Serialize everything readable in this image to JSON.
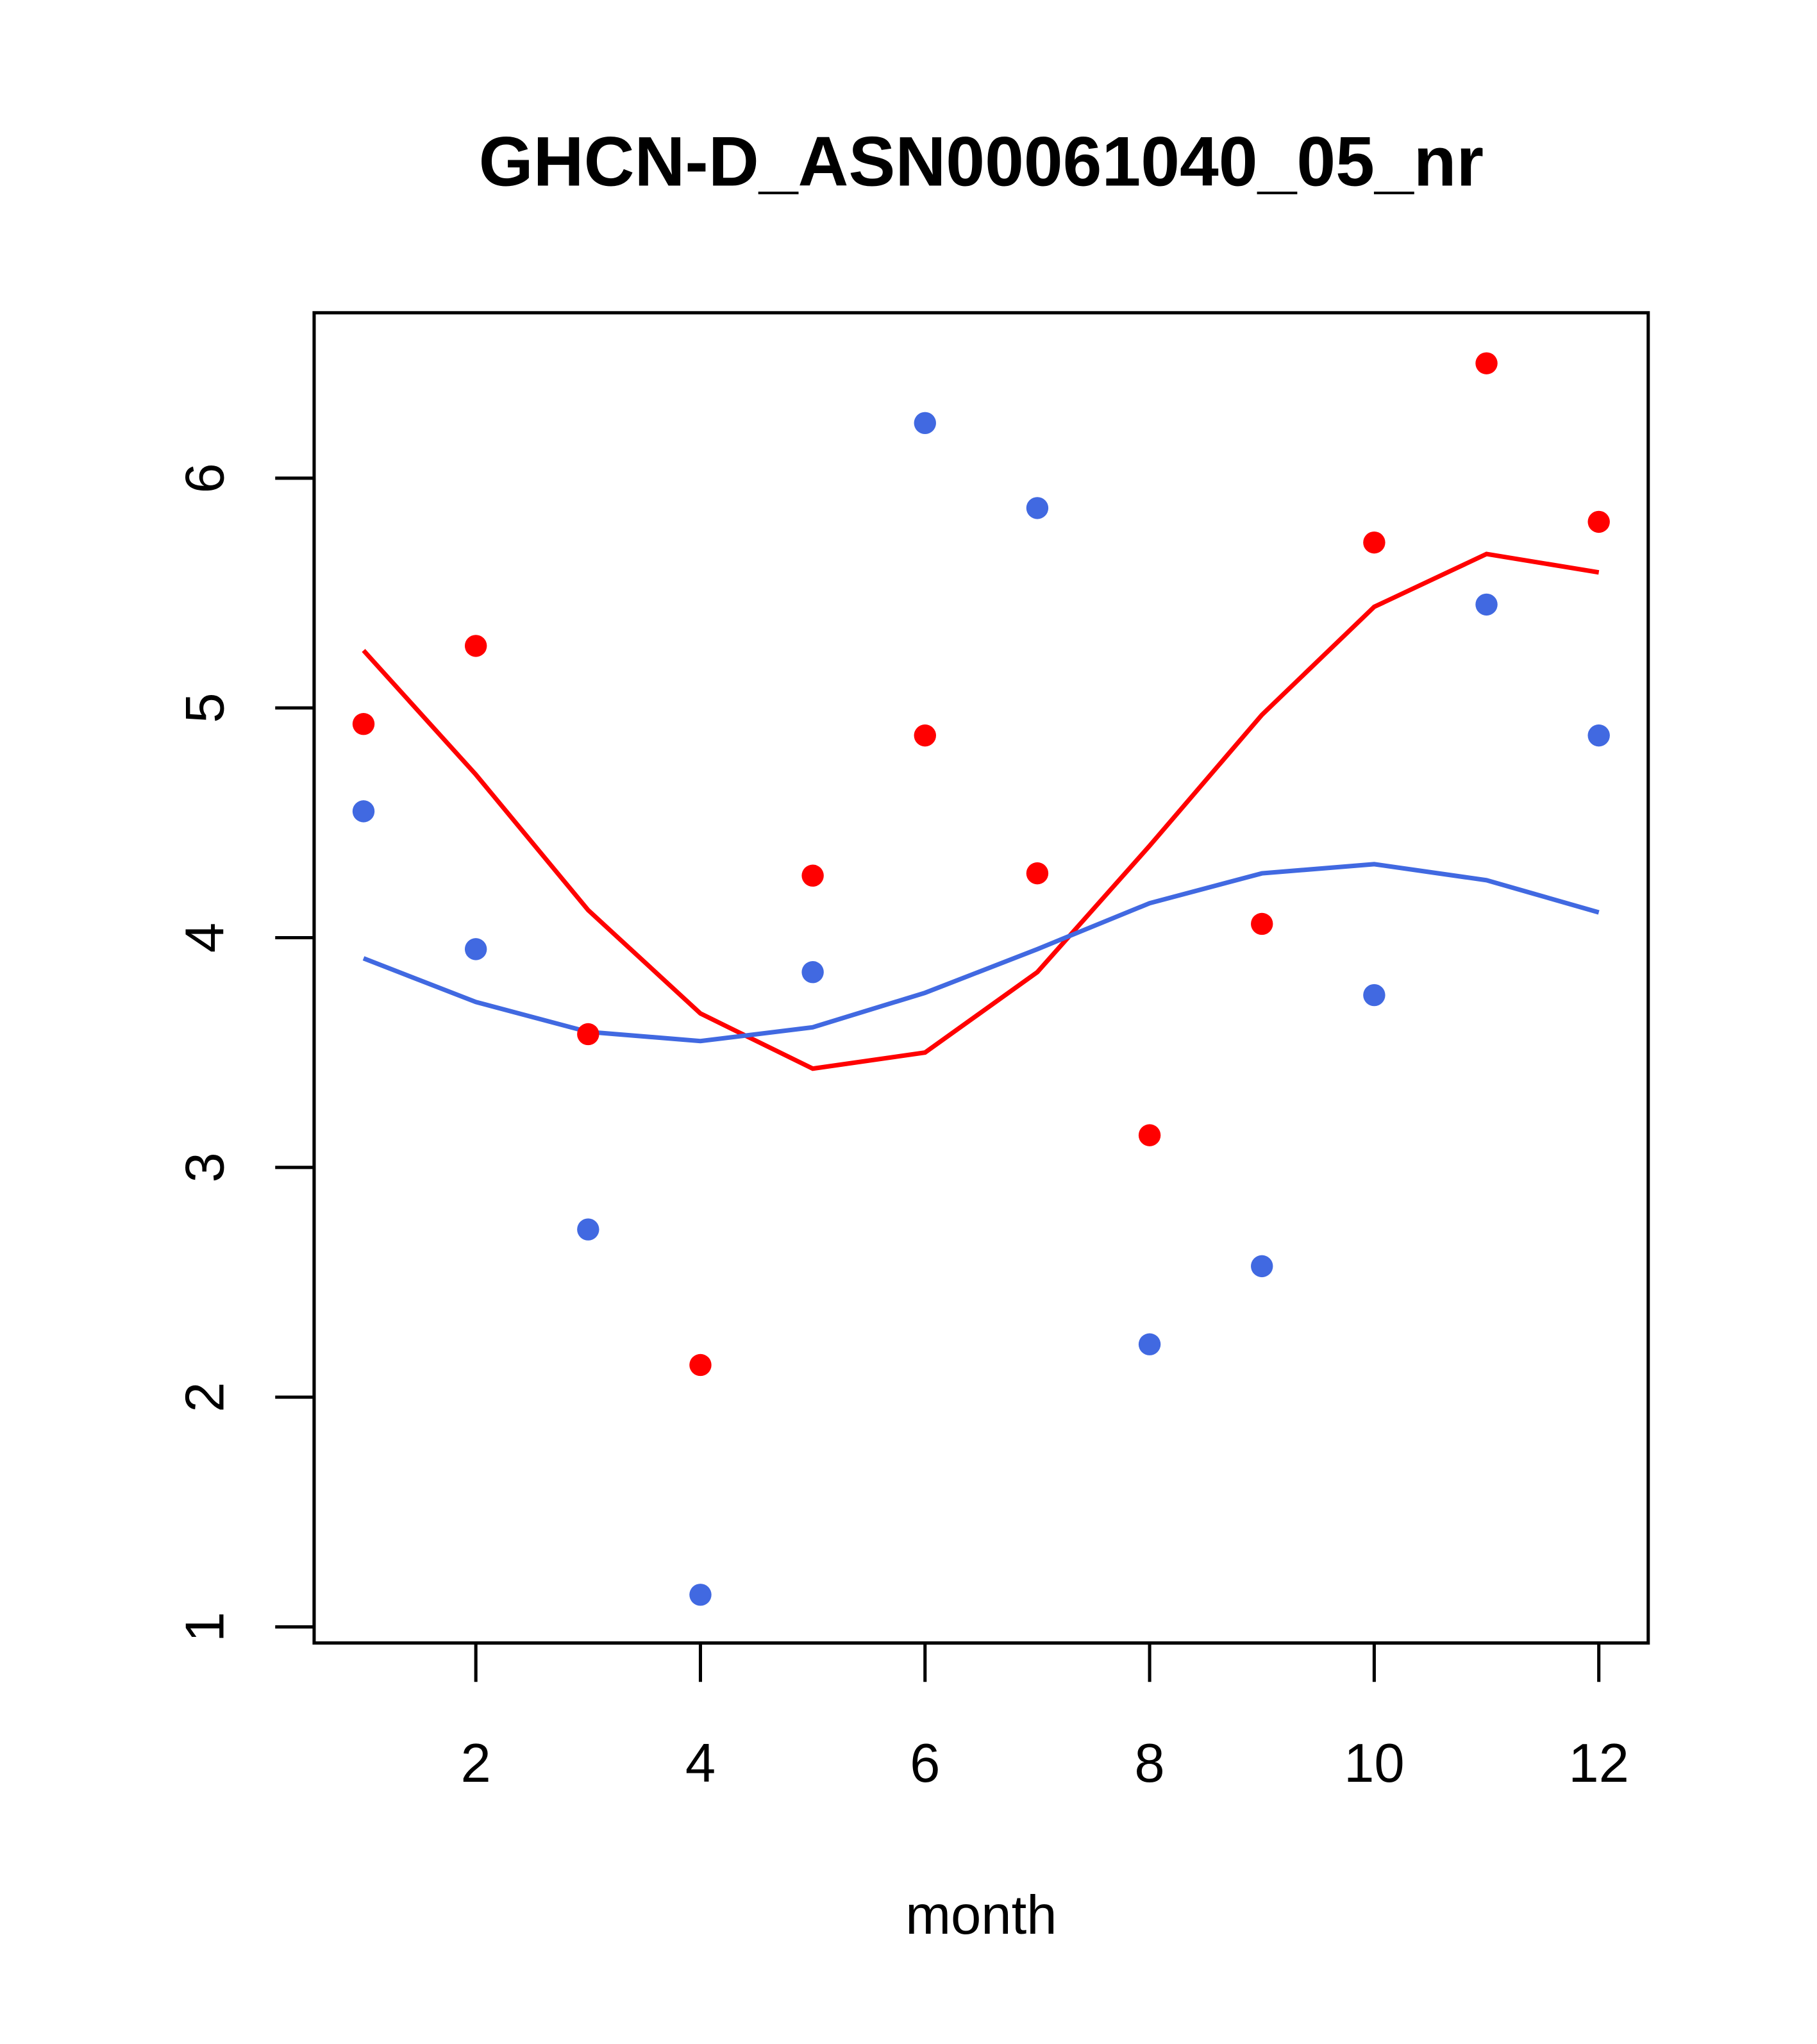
{
  "chart_data": {
    "type": "scatter",
    "title": "GHCN-D_ASN00061040_05_nr",
    "xlabel": "month",
    "ylabel": "",
    "xlim": [
      0.56,
      12.44
    ],
    "ylim": [
      0.93,
      6.72
    ],
    "xticks": [
      2,
      4,
      6,
      8,
      10,
      12
    ],
    "yticks": [
      1,
      2,
      3,
      4,
      5,
      6
    ],
    "grid": false,
    "x": [
      1,
      2,
      3,
      4,
      5,
      6,
      7,
      8,
      9,
      10,
      11,
      12
    ],
    "series": [
      {
        "name": "red points",
        "kind": "points",
        "color": "#ff0000",
        "values": [
          4.93,
          5.27,
          3.58,
          2.14,
          4.27,
          4.88,
          4.28,
          3.14,
          4.06,
          5.72,
          6.5,
          5.81
        ]
      },
      {
        "name": "blue points",
        "kind": "points",
        "color": "#4169e1",
        "values": [
          4.55,
          3.95,
          2.73,
          1.14,
          3.85,
          6.24,
          5.87,
          2.23,
          2.57,
          3.75,
          5.45,
          4.88
        ]
      },
      {
        "name": "red line",
        "kind": "line",
        "color": "#ff0000",
        "values": [
          5.25,
          4.71,
          4.12,
          3.67,
          3.43,
          3.5,
          3.85,
          4.4,
          4.97,
          5.44,
          5.67,
          5.59
        ]
      },
      {
        "name": "blue line",
        "kind": "line",
        "color": "#4169e1",
        "values": [
          3.91,
          3.72,
          3.59,
          3.55,
          3.61,
          3.76,
          3.95,
          4.15,
          4.28,
          4.32,
          4.25,
          4.11
        ]
      }
    ]
  }
}
